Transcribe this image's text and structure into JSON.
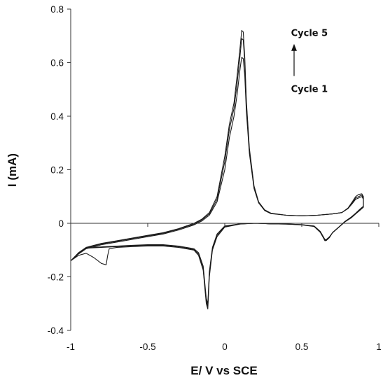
{
  "chart_data": {
    "type": "line",
    "title": "",
    "xlabel": "E/ V vs SCE",
    "ylabel": "I (mA)",
    "xlim": [
      -1,
      1
    ],
    "ylim": [
      -0.4,
      0.8
    ],
    "xticks": [
      -1,
      -0.5,
      0,
      0.5,
      1
    ],
    "xtick_labels": [
      "-1",
      "-0.5",
      "0",
      "0.5",
      "1"
    ],
    "yticks": [
      -0.4,
      -0.2,
      0,
      0.2,
      0.4,
      0.6,
      0.8
    ],
    "ytick_labels": [
      "-0.4",
      "-0.2",
      "0",
      "0.2",
      "0.4",
      "0.6",
      "0.8"
    ],
    "grid": false,
    "legend": "none",
    "line_color": "#1a1a1a",
    "annotations": [
      {
        "text": "Cycle 5",
        "x": 0.43,
        "y": 0.7
      },
      {
        "text": "Cycle 1",
        "x": 0.43,
        "y": 0.49
      }
    ],
    "arrow": {
      "from": [
        0.45,
        0.55
      ],
      "to": [
        0.45,
        0.67
      ]
    },
    "series": [
      {
        "x": [
          -1.0,
          -0.95,
          -0.9,
          -0.8,
          -0.7,
          -0.6,
          -0.5,
          -0.4,
          -0.3,
          -0.2,
          -0.15,
          -0.1,
          -0.05,
          0.0,
          0.03,
          0.06,
          0.08,
          0.1,
          0.11,
          0.12,
          0.13,
          0.14,
          0.16,
          0.19,
          0.22,
          0.26,
          0.3,
          0.4,
          0.5,
          0.6,
          0.7,
          0.76,
          0.8,
          0.83,
          0.85,
          0.87,
          0.89,
          0.9,
          0.9,
          0.88,
          0.85,
          0.82,
          0.78,
          0.74,
          0.7,
          0.68,
          0.66,
          0.65,
          0.64,
          0.62,
          0.58,
          0.5,
          0.4,
          0.3,
          0.2,
          0.1,
          0.0,
          -0.05,
          -0.08,
          -0.1,
          -0.11,
          -0.12,
          -0.14,
          -0.17,
          -0.2,
          -0.3,
          -0.4,
          -0.5,
          -0.6,
          -0.7,
          -0.8,
          -0.9,
          -0.95,
          -1.0
        ],
        "y": [
          -0.14,
          -0.11,
          -0.09,
          -0.075,
          -0.065,
          -0.055,
          -0.045,
          -0.035,
          -0.02,
          0.0,
          0.015,
          0.04,
          0.1,
          0.25,
          0.37,
          0.45,
          0.55,
          0.66,
          0.72,
          0.715,
          0.62,
          0.46,
          0.28,
          0.14,
          0.08,
          0.05,
          0.038,
          0.03,
          0.028,
          0.03,
          0.035,
          0.04,
          0.055,
          0.075,
          0.09,
          0.095,
          0.1,
          0.09,
          0.06,
          0.05,
          0.035,
          0.02,
          0.005,
          -0.015,
          -0.035,
          -0.05,
          -0.06,
          -0.06,
          -0.05,
          -0.03,
          -0.01,
          -0.005,
          -0.003,
          -0.002,
          0.0,
          -0.002,
          -0.01,
          -0.04,
          -0.09,
          -0.18,
          -0.3,
          -0.28,
          -0.16,
          -0.11,
          -0.095,
          -0.085,
          -0.08,
          -0.08,
          -0.082,
          -0.085,
          -0.088,
          -0.09,
          -0.11,
          -0.14
        ]
      },
      {
        "x": [
          -1.0,
          -0.95,
          -0.9,
          -0.8,
          -0.7,
          -0.6,
          -0.5,
          -0.4,
          -0.3,
          -0.2,
          -0.15,
          -0.1,
          -0.05,
          0.0,
          0.03,
          0.06,
          0.08,
          0.1,
          0.11,
          0.12,
          0.13,
          0.14,
          0.16,
          0.19,
          0.22,
          0.26,
          0.3,
          0.4,
          0.5,
          0.6,
          0.7,
          0.76,
          0.8,
          0.83,
          0.85,
          0.87,
          0.89,
          0.9,
          0.9,
          0.88,
          0.85,
          0.82,
          0.78,
          0.74,
          0.7,
          0.68,
          0.66,
          0.65,
          0.64,
          0.62,
          0.58,
          0.5,
          0.4,
          0.3,
          0.2,
          0.1,
          0.0,
          -0.05,
          -0.08,
          -0.1,
          -0.11,
          -0.12,
          -0.14,
          -0.17,
          -0.2,
          -0.3,
          -0.4,
          -0.5,
          -0.6,
          -0.7,
          -0.8,
          -0.9,
          -0.95,
          -1.0
        ],
        "y": [
          -0.14,
          -0.112,
          -0.092,
          -0.077,
          -0.067,
          -0.057,
          -0.047,
          -0.037,
          -0.022,
          -0.003,
          0.012,
          0.035,
          0.09,
          0.23,
          0.35,
          0.43,
          0.52,
          0.63,
          0.69,
          0.685,
          0.6,
          0.45,
          0.27,
          0.135,
          0.078,
          0.048,
          0.037,
          0.03,
          0.028,
          0.03,
          0.035,
          0.04,
          0.056,
          0.078,
          0.095,
          0.1,
          0.105,
          0.095,
          0.062,
          0.052,
          0.037,
          0.022,
          0.006,
          -0.015,
          -0.035,
          -0.052,
          -0.062,
          -0.063,
          -0.052,
          -0.032,
          -0.011,
          -0.005,
          -0.003,
          -0.002,
          0.0,
          -0.002,
          -0.012,
          -0.045,
          -0.095,
          -0.19,
          -0.31,
          -0.29,
          -0.17,
          -0.115,
          -0.098,
          -0.087,
          -0.082,
          -0.082,
          -0.084,
          -0.087,
          -0.09,
          -0.093,
          -0.112,
          -0.14
        ]
      },
      {
        "x": [
          -1.0,
          -0.95,
          -0.9,
          -0.8,
          -0.7,
          -0.6,
          -0.5,
          -0.4,
          -0.3,
          -0.2,
          -0.15,
          -0.1,
          -0.05,
          0.0,
          0.03,
          0.06,
          0.08,
          0.1,
          0.11,
          0.12,
          0.13,
          0.14,
          0.16,
          0.19,
          0.22,
          0.26,
          0.3,
          0.4,
          0.5,
          0.6,
          0.7,
          0.76,
          0.8,
          0.83,
          0.85,
          0.87,
          0.89,
          0.9,
          0.9,
          0.88,
          0.85,
          0.82,
          0.78,
          0.74,
          0.7,
          0.68,
          0.66,
          0.65,
          0.64,
          0.62,
          0.58,
          0.5,
          0.4,
          0.3,
          0.2,
          0.1,
          0.0,
          -0.05,
          -0.08,
          -0.1,
          -0.11,
          -0.12,
          -0.14,
          -0.17,
          -0.2,
          -0.3,
          -0.4,
          -0.5,
          -0.6,
          -0.7,
          -0.75,
          -0.76,
          -0.77,
          -0.8,
          -0.85,
          -0.9,
          -0.95,
          -1.0
        ],
        "y": [
          -0.14,
          -0.115,
          -0.095,
          -0.08,
          -0.07,
          -0.06,
          -0.05,
          -0.04,
          -0.025,
          -0.006,
          0.008,
          0.03,
          0.08,
          0.2,
          0.32,
          0.4,
          0.48,
          0.58,
          0.62,
          0.615,
          0.55,
          0.42,
          0.26,
          0.13,
          0.076,
          0.047,
          0.036,
          0.03,
          0.028,
          0.03,
          0.035,
          0.04,
          0.057,
          0.082,
          0.1,
          0.108,
          0.11,
          0.1,
          0.064,
          0.054,
          0.038,
          0.023,
          0.007,
          -0.014,
          -0.034,
          -0.053,
          -0.064,
          -0.065,
          -0.054,
          -0.034,
          -0.012,
          -0.006,
          -0.003,
          -0.002,
          0.0,
          -0.003,
          -0.014,
          -0.05,
          -0.1,
          -0.2,
          -0.32,
          -0.3,
          -0.175,
          -0.12,
          -0.1,
          -0.09,
          -0.085,
          -0.085,
          -0.087,
          -0.09,
          -0.095,
          -0.12,
          -0.155,
          -0.15,
          -0.128,
          -0.112,
          -0.12,
          -0.14
        ]
      }
    ]
  }
}
